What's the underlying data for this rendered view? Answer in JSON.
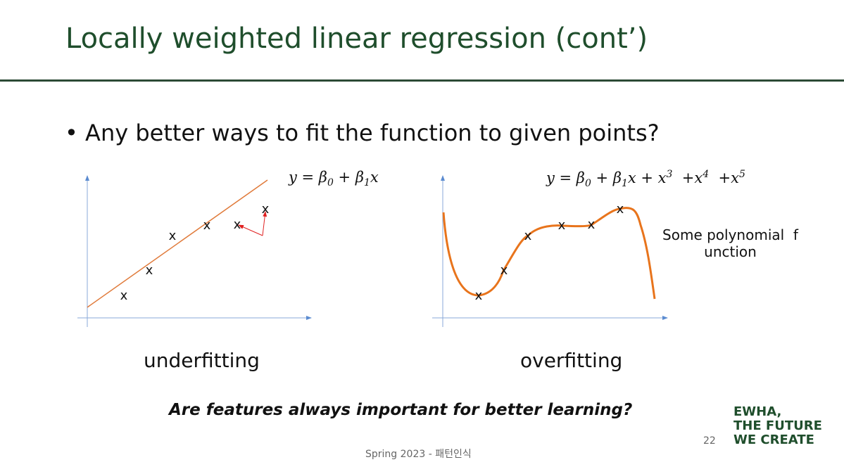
{
  "title": "Locally weighted linear regression (cont’)",
  "bullet": "Any better ways to fit the function to given points?",
  "left": {
    "formula": [
      "y = β",
      "0",
      " + β",
      "1",
      "x"
    ],
    "points": [
      "x",
      "x",
      "x",
      "x",
      "x",
      "x"
    ],
    "caption": "underfitting"
  },
  "right": {
    "formula": [
      "y = β",
      "0",
      " + β",
      "1",
      "x + x",
      "3",
      "  +x",
      "4",
      "  +x",
      "5"
    ],
    "points": [
      "x",
      "x",
      "x",
      "x",
      "x",
      "x"
    ],
    "caption": "overfitting",
    "note": [
      "Some polynomial  f",
      "unction"
    ]
  },
  "question": "Are features always important for better learning?",
  "footer": "Spring 2023 - 패턴인식",
  "page": "22",
  "logo": [
    "EWHA,",
    "THE FUTURE",
    "WE CREATE"
  ]
}
